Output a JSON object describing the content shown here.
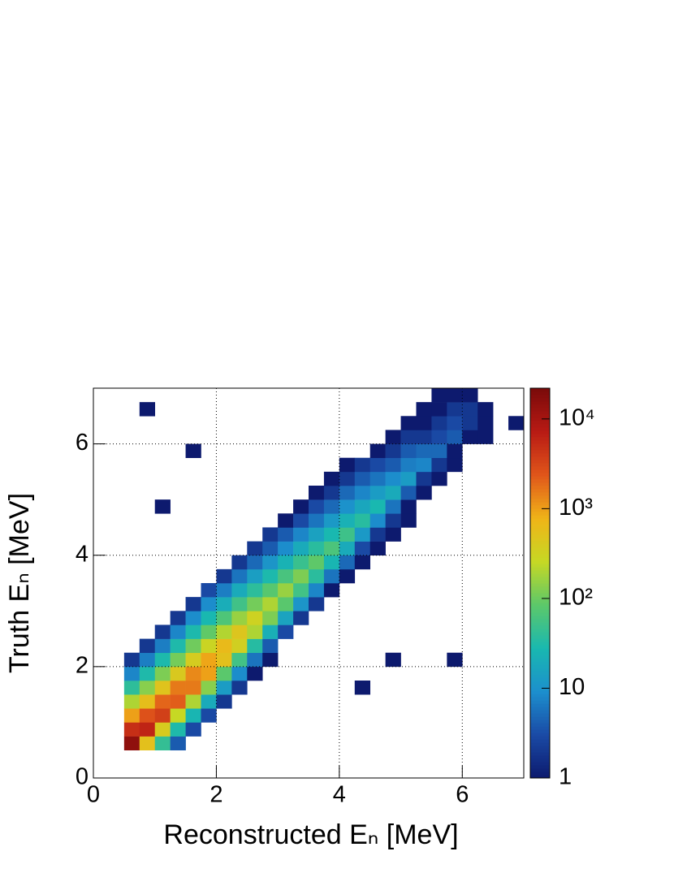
{
  "chart_data": {
    "type": "heatmap",
    "x_label": "Reconstructed Eₙ [MeV]",
    "y_label": "Truth Eₙ [MeV]",
    "xlim": [
      0,
      7
    ],
    "ylim": [
      0,
      7
    ],
    "xticks": [
      0,
      2,
      4,
      6
    ],
    "yticks": [
      0,
      2,
      4,
      6
    ],
    "grid": true,
    "xbins": [
      0,
      0.25,
      0.5,
      0.75,
      1,
      1.25,
      1.5,
      1.75,
      2,
      2.25,
      2.5,
      2.75,
      3,
      3.25,
      3.5,
      3.75,
      4,
      4.25,
      4.5,
      4.75,
      5,
      5.25,
      5.5,
      5.75,
      6,
      6.25,
      6.5,
      6.75,
      7
    ],
    "ybins": [
      0,
      0.25,
      0.5,
      0.75,
      1,
      1.25,
      1.5,
      1.75,
      2,
      2.25,
      2.5,
      2.75,
      3,
      3.25,
      3.5,
      3.75,
      4,
      4.25,
      4.5,
      4.75,
      5,
      5.25,
      5.5,
      5.75,
      6,
      6.25,
      6.5,
      6.75,
      7
    ],
    "zlim": [
      1,
      22000
    ],
    "zlog": true,
    "zticks": [
      1,
      10,
      {
        "value": 100,
        "label": "10²"
      },
      {
        "value": 1000,
        "label": "10³"
      },
      {
        "value": 10000,
        "label": "10⁴"
      }
    ],
    "colormap": [
      "#0d1a6e",
      "#1a4aa5",
      "#1c8fcd",
      "#19b8b0",
      "#5cc86a",
      "#c6d824",
      "#f0b418",
      "#e0561a",
      "#b81a14",
      "#7a0a0a"
    ],
    "z": [
      [
        null,
        null,
        null,
        null,
        null,
        null,
        null,
        null,
        null,
        null,
        null,
        null,
        null,
        null,
        null,
        null,
        null,
        null,
        null,
        null,
        null,
        null,
        null,
        null,
        null,
        null,
        null,
        null
      ],
      [
        null,
        null,
        null,
        null,
        null,
        null,
        null,
        null,
        null,
        null,
        null,
        null,
        null,
        null,
        null,
        null,
        null,
        null,
        null,
        null,
        null,
        null,
        null,
        null,
        null,
        null,
        null,
        null
      ],
      [
        null,
        null,
        15000,
        550,
        44,
        4,
        null,
        null,
        null,
        null,
        null,
        null,
        null,
        null,
        null,
        null,
        null,
        null,
        null,
        null,
        null,
        null,
        null,
        null,
        null,
        null,
        null,
        null
      ],
      [
        null,
        null,
        4900,
        6000,
        400,
        31,
        3,
        null,
        null,
        null,
        null,
        null,
        null,
        null,
        null,
        null,
        null,
        null,
        null,
        null,
        null,
        null,
        null,
        null,
        null,
        null,
        null,
        null
      ],
      [
        null,
        null,
        1000,
        2600,
        3600,
        260,
        26,
        3,
        null,
        null,
        null,
        null,
        null,
        null,
        null,
        null,
        null,
        null,
        null,
        null,
        null,
        null,
        null,
        null,
        null,
        null,
        null,
        null
      ],
      [
        null,
        null,
        200,
        590,
        2000,
        2200,
        200,
        19,
        2,
        null,
        null,
        null,
        null,
        null,
        null,
        null,
        null,
        null,
        null,
        null,
        null,
        null,
        null,
        null,
        null,
        null,
        null,
        null
      ],
      [
        null,
        null,
        40,
        135,
        500,
        1550,
        1550,
        135,
        13,
        2,
        null,
        null,
        null,
        null,
        null,
        null,
        null,
        1,
        null,
        null,
        null,
        null,
        null,
        null,
        null,
        null,
        null,
        null
      ],
      [
        null,
        null,
        8,
        31,
        120,
        420,
        1300,
        980,
        83,
        9,
        1,
        null,
        null,
        null,
        null,
        null,
        null,
        null,
        null,
        null,
        null,
        null,
        null,
        null,
        null,
        null,
        null,
        null
      ],
      [
        null,
        null,
        2,
        7,
        30,
        110,
        370,
        930,
        540,
        55,
        6,
        1,
        null,
        null,
        null,
        null,
        null,
        null,
        null,
        1,
        null,
        null,
        null,
        1,
        null,
        null,
        null,
        null
      ],
      [
        null,
        null,
        null,
        2,
        7,
        31,
        105,
        290,
        650,
        340,
        35,
        4,
        null,
        null,
        null,
        null,
        null,
        null,
        null,
        null,
        null,
        null,
        null,
        null,
        null,
        null,
        null,
        null
      ],
      [
        null,
        null,
        null,
        null,
        2,
        8,
        30,
        89,
        210,
        460,
        200,
        22,
        3,
        null,
        null,
        null,
        null,
        null,
        null,
        null,
        null,
        null,
        null,
        null,
        null,
        null,
        null,
        null
      ],
      [
        null,
        null,
        null,
        null,
        null,
        2,
        9,
        28,
        68,
        160,
        310,
        120,
        16,
        2,
        null,
        null,
        null,
        null,
        null,
        null,
        null,
        null,
        null,
        null,
        null,
        null,
        null,
        null
      ],
      [
        null,
        null,
        null,
        null,
        null,
        null,
        2,
        9,
        21,
        54,
        110,
        200,
        81,
        11,
        2,
        null,
        null,
        null,
        null,
        null,
        null,
        null,
        null,
        null,
        null,
        null,
        null,
        null
      ],
      [
        null,
        null,
        null,
        null,
        null,
        null,
        null,
        3,
        7,
        19,
        39,
        78,
        160,
        55,
        8,
        1,
        null,
        null,
        null,
        null,
        null,
        null,
        null,
        null,
        null,
        null,
        null,
        null
      ],
      [
        null,
        null,
        null,
        null,
        null,
        null,
        null,
        null,
        2,
        6,
        14,
        30,
        62,
        120,
        38,
        6,
        1,
        null,
        null,
        null,
        null,
        null,
        null,
        null,
        null,
        null,
        null,
        null
      ],
      [
        null,
        null,
        null,
        null,
        null,
        null,
        null,
        null,
        null,
        2,
        5,
        11,
        24,
        48,
        87,
        26,
        5,
        1,
        null,
        null,
        null,
        null,
        null,
        null,
        null,
        null,
        null,
        null
      ],
      [
        null,
        null,
        null,
        null,
        null,
        null,
        null,
        null,
        null,
        null,
        2,
        4,
        9,
        19,
        37,
        65,
        19,
        3,
        1,
        null,
        null,
        null,
        null,
        null,
        null,
        null,
        null,
        null
      ],
      [
        null,
        null,
        null,
        null,
        null,
        null,
        null,
        null,
        null,
        null,
        null,
        2,
        4,
        8,
        15,
        28,
        52,
        12,
        2,
        1,
        null,
        null,
        null,
        null,
        null,
        null,
        null,
        null
      ],
      [
        null,
        null,
        null,
        null,
        null,
        null,
        null,
        null,
        null,
        null,
        null,
        null,
        1,
        3,
        6,
        12,
        23,
        36,
        9,
        2,
        1,
        null,
        null,
        null,
        null,
        null,
        null,
        null
      ],
      [
        null,
        null,
        null,
        null,
        1,
        null,
        null,
        null,
        null,
        null,
        null,
        null,
        null,
        1,
        3,
        5,
        10,
        17,
        28,
        6,
        1,
        null,
        null,
        null,
        null,
        null,
        null,
        null
      ],
      [
        null,
        null,
        null,
        null,
        null,
        null,
        null,
        null,
        null,
        null,
        null,
        null,
        null,
        null,
        1,
        2,
        5,
        8,
        13,
        19,
        4,
        1,
        null,
        null,
        null,
        null,
        null,
        null
      ],
      [
        null,
        null,
        null,
        null,
        null,
        null,
        null,
        null,
        null,
        null,
        null,
        null,
        null,
        null,
        null,
        1,
        2,
        4,
        6,
        9,
        13,
        2,
        1,
        null,
        null,
        null,
        null,
        null
      ],
      [
        null,
        null,
        null,
        null,
        null,
        null,
        null,
        null,
        null,
        null,
        null,
        null,
        null,
        null,
        null,
        null,
        1,
        2,
        3,
        4,
        7,
        8,
        2,
        1,
        null,
        null,
        null,
        null
      ],
      [
        null,
        null,
        null,
        null,
        null,
        null,
        1,
        null,
        null,
        null,
        null,
        null,
        null,
        null,
        null,
        null,
        null,
        null,
        1,
        2,
        4,
        5,
        5,
        1,
        null,
        null,
        null,
        null
      ],
      [
        null,
        null,
        null,
        null,
        null,
        null,
        null,
        null,
        null,
        null,
        null,
        null,
        null,
        null,
        null,
        null,
        null,
        null,
        null,
        1,
        2,
        2,
        3,
        4,
        1,
        1,
        null,
        null
      ],
      [
        null,
        null,
        null,
        null,
        null,
        null,
        null,
        null,
        null,
        null,
        null,
        null,
        null,
        null,
        null,
        null,
        null,
        null,
        null,
        null,
        1,
        1,
        2,
        3,
        2,
        1,
        null,
        1
      ],
      [
        null,
        null,
        null,
        1,
        null,
        null,
        null,
        null,
        null,
        null,
        null,
        null,
        null,
        null,
        null,
        null,
        null,
        null,
        null,
        null,
        null,
        1,
        1,
        2,
        2,
        1,
        null,
        null
      ],
      [
        null,
        null,
        null,
        null,
        null,
        null,
        null,
        null,
        null,
        null,
        null,
        null,
        null,
        null,
        null,
        null,
        null,
        null,
        null,
        null,
        null,
        null,
        1,
        1,
        1,
        null,
        null,
        null
      ]
    ]
  }
}
